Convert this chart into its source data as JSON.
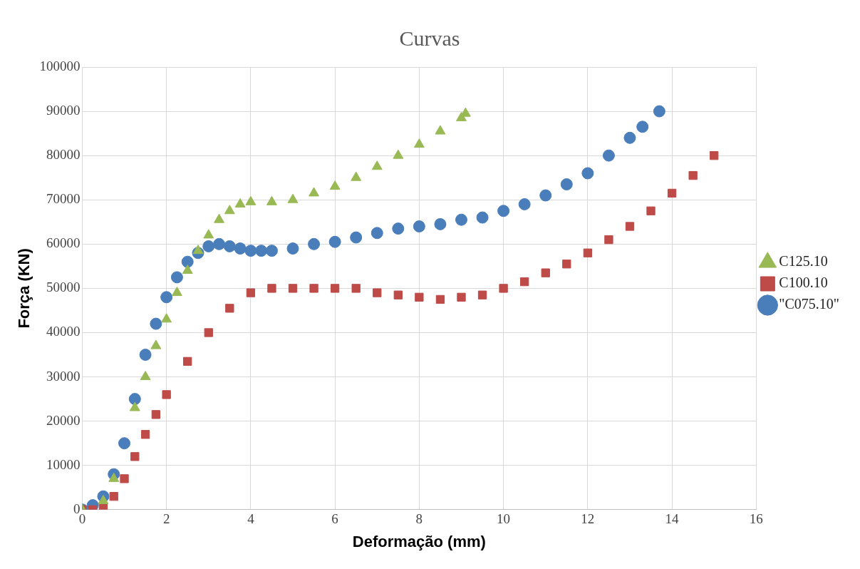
{
  "chart_data": {
    "type": "scatter",
    "title": "Curvas",
    "xlabel": "Deformação (mm)",
    "ylabel": "Força (KN)",
    "xlim": [
      0,
      16
    ],
    "xticks": [
      0,
      2,
      4,
      6,
      8,
      10,
      12,
      14,
      16
    ],
    "ylim": [
      0,
      100000
    ],
    "yticks": [
      0,
      10000,
      20000,
      30000,
      40000,
      50000,
      60000,
      70000,
      80000,
      90000,
      100000
    ],
    "grid": true,
    "legend": "right",
    "series": [
      {
        "name": "\"C075.10\"",
        "color": "#4a7ebb",
        "marker": "circle",
        "x": [
          0,
          0.25,
          0.5,
          0.75,
          1,
          1.25,
          1.5,
          1.75,
          2,
          2.25,
          2.5,
          2.75,
          3,
          3.25,
          3.5,
          3.75,
          4,
          4.25,
          4.5,
          5,
          5.5,
          6,
          6.5,
          7,
          7.5,
          8,
          8.5,
          9,
          9.5,
          10,
          10.5,
          11,
          11.5,
          12,
          12.5,
          13,
          13.3,
          13.7
        ],
        "values": [
          0,
          1000,
          3000,
          8000,
          15000,
          25000,
          35000,
          42000,
          48000,
          52500,
          56000,
          58000,
          59500,
          60000,
          59500,
          59000,
          58500,
          58500,
          58500,
          59000,
          60000,
          60500,
          61500,
          62500,
          63500,
          64000,
          64500,
          65500,
          66000,
          67500,
          69000,
          71000,
          73500,
          76000,
          80000,
          84000,
          86500,
          90000
        ]
      },
      {
        "name": "C100.10",
        "color": "#be4b48",
        "marker": "square",
        "x": [
          0,
          0.25,
          0.5,
          0.75,
          1,
          1.25,
          1.5,
          1.75,
          2,
          2.5,
          3,
          3.5,
          4,
          4.5,
          5,
          5.5,
          6,
          6.5,
          7,
          7.5,
          8,
          8.5,
          9,
          9.5,
          10,
          10.5,
          11,
          11.5,
          12,
          12.5,
          13,
          13.5,
          14,
          14.5,
          15
        ],
        "values": [
          0,
          0,
          500,
          3000,
          7000,
          12000,
          17000,
          21500,
          26000,
          33500,
          40000,
          45500,
          49000,
          50000,
          50000,
          50000,
          50000,
          50000,
          49000,
          48500,
          48000,
          47500,
          48000,
          48500,
          50000,
          51500,
          53500,
          55500,
          58000,
          61000,
          64000,
          67500,
          71500,
          75500,
          80000
        ]
      },
      {
        "name": "C125.10",
        "color": "#98b954",
        "marker": "triangle",
        "x": [
          0,
          0.5,
          0.75,
          1.25,
          1.5,
          1.75,
          2,
          2.25,
          2.5,
          2.75,
          3,
          3.25,
          3.5,
          3.75,
          4,
          4.5,
          5,
          5.5,
          6,
          6.5,
          7,
          7.5,
          8,
          8.5,
          9,
          9.1
        ],
        "values": [
          0,
          2000,
          7000,
          23000,
          30000,
          37000,
          43000,
          49000,
          54000,
          58500,
          62000,
          65500,
          67500,
          69000,
          69500,
          69500,
          70000,
          71500,
          73000,
          75000,
          77500,
          80000,
          82500,
          85500,
          88500,
          89500
        ]
      }
    ]
  }
}
